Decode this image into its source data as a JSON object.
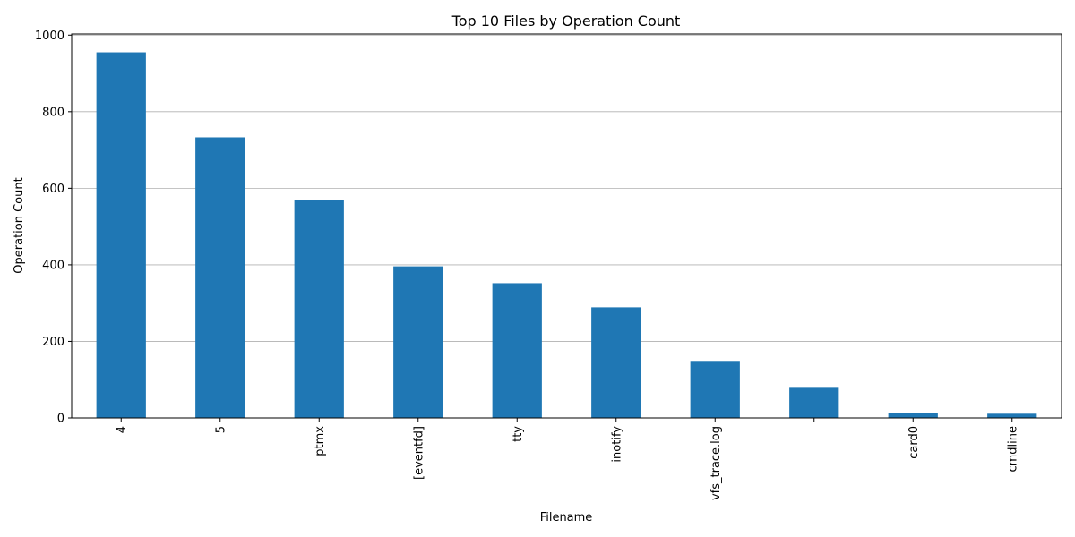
{
  "chart_data": {
    "type": "bar",
    "title": "Top 10 Files by Operation Count",
    "xlabel": "Filename",
    "ylabel": "Operation Count",
    "categories": [
      "4",
      "5",
      "ptmx",
      "[eventfd]",
      "tty",
      "inotify",
      "vfs_trace.log",
      "",
      "card0",
      "cmdline"
    ],
    "values": [
      955,
      733,
      569,
      396,
      352,
      289,
      149,
      81,
      12,
      11
    ],
    "ylim": [
      0,
      1003
    ],
    "yticks": [
      0,
      200,
      400,
      600,
      800,
      1000
    ],
    "grid": "y-major",
    "legend": "none",
    "bar_color": "#1f77b4"
  }
}
